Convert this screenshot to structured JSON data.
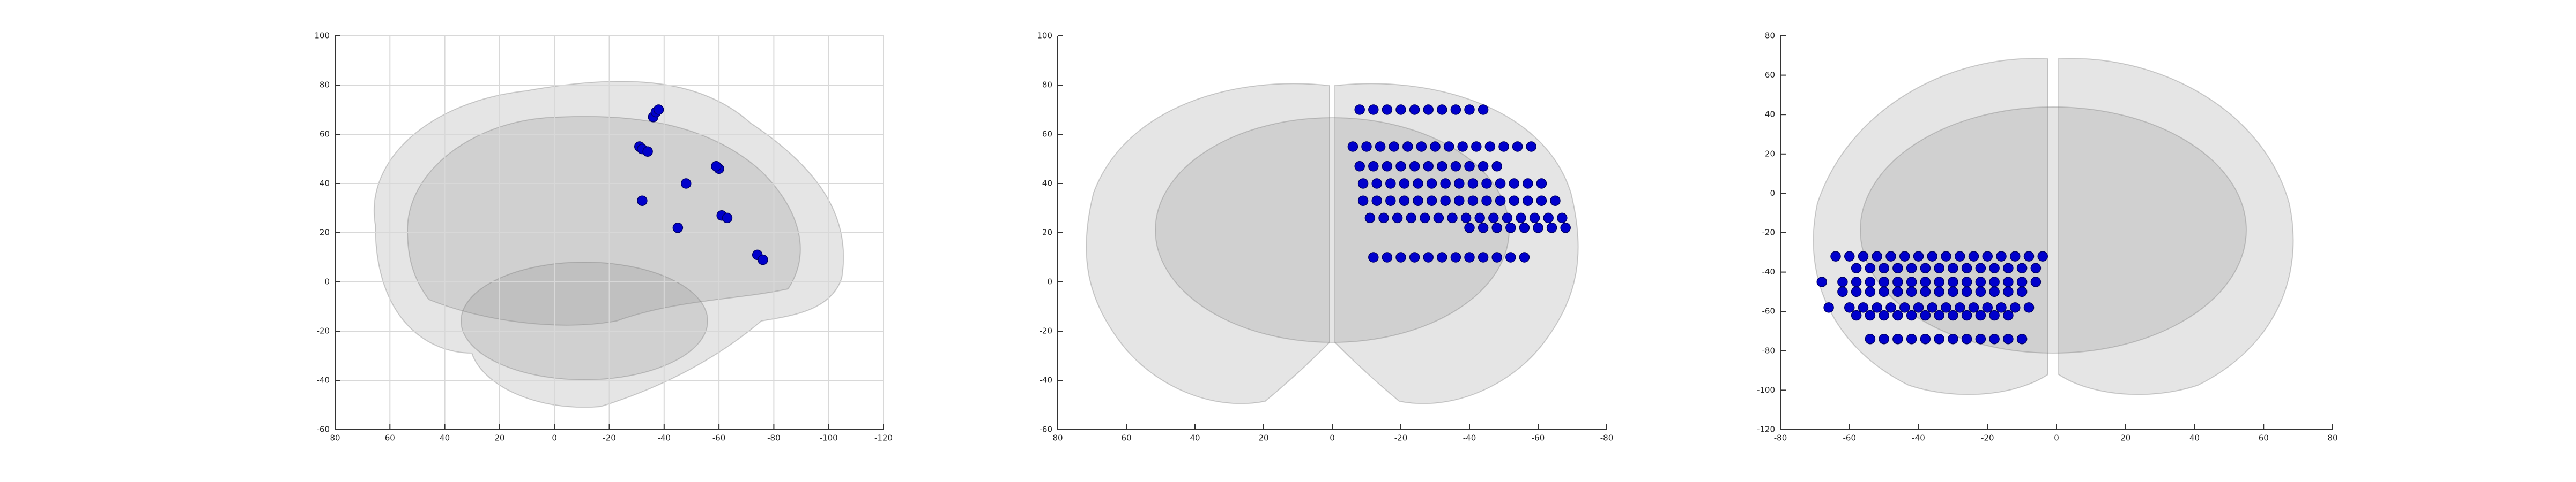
{
  "chart_data": [
    {
      "type": "scatter",
      "color": "#0000cc",
      "grid": true,
      "xlim": [
        80,
        -120
      ],
      "xticks": [
        80,
        60,
        40,
        20,
        0,
        -20,
        -40,
        -60,
        -80,
        -100,
        -120
      ],
      "ylim": [
        -60,
        100
      ],
      "yticks": [
        -60,
        -40,
        -20,
        0,
        20,
        40,
        60,
        80,
        100
      ],
      "x": [
        -36,
        -37,
        -38,
        -31,
        -32,
        -34,
        -60,
        -59,
        -48,
        -32,
        -61,
        -63,
        -45,
        -74,
        -76
      ],
      "y": [
        67,
        69,
        70,
        55,
        54,
        53,
        46,
        47,
        40,
        33,
        27,
        26,
        22,
        11,
        9
      ]
    },
    {
      "type": "scatter",
      "color": "#0000cc",
      "grid": false,
      "xlim": [
        80,
        -80
      ],
      "xticks": [
        80,
        60,
        40,
        20,
        0,
        -20,
        -40,
        -60,
        -80
      ],
      "ylim": [
        -60,
        100
      ],
      "yticks": [
        -60,
        -40,
        -20,
        0,
        20,
        40,
        60,
        80,
        100
      ],
      "x": [
        -8,
        -12,
        -16,
        -20,
        -24,
        -28,
        -32,
        -36,
        -40,
        -44,
        -6,
        -10,
        -14,
        -18,
        -22,
        -26,
        -30,
        -34,
        -38,
        -42,
        -46,
        -50,
        -54,
        -58,
        -8,
        -12,
        -16,
        -20,
        -24,
        -28,
        -32,
        -36,
        -40,
        -44,
        -48,
        -9,
        -13,
        -17,
        -21,
        -25,
        -29,
        -33,
        -37,
        -41,
        -45,
        -49,
        -53,
        -57,
        -61,
        -9,
        -13,
        -17,
        -21,
        -25,
        -29,
        -33,
        -37,
        -41,
        -45,
        -49,
        -53,
        -57,
        -61,
        -65,
        -11,
        -15,
        -19,
        -23,
        -27,
        -31,
        -35,
        -39,
        -43,
        -47,
        -51,
        -55,
        -59,
        -63,
        -67,
        -40,
        -44,
        -48,
        -52,
        -56,
        -60,
        -64,
        -68,
        -12,
        -16,
        -20,
        -24,
        -28,
        -32,
        -36,
        -40,
        -44,
        -48,
        -52,
        -56
      ],
      "y": [
        70,
        70,
        70,
        70,
        70,
        70,
        70,
        70,
        70,
        70,
        55,
        55,
        55,
        55,
        55,
        55,
        55,
        55,
        55,
        55,
        55,
        55,
        55,
        55,
        47,
        47,
        47,
        47,
        47,
        47,
        47,
        47,
        47,
        47,
        47,
        40,
        40,
        40,
        40,
        40,
        40,
        40,
        40,
        40,
        40,
        40,
        40,
        40,
        40,
        33,
        33,
        33,
        33,
        33,
        33,
        33,
        33,
        33,
        33,
        33,
        33,
        33,
        33,
        33,
        26,
        26,
        26,
        26,
        26,
        26,
        26,
        26,
        26,
        26,
        26,
        26,
        26,
        26,
        26,
        22,
        22,
        22,
        22,
        22,
        22,
        22,
        22,
        10,
        10,
        10,
        10,
        10,
        10,
        10,
        10,
        10,
        10,
        10,
        10
      ]
    },
    {
      "type": "scatter",
      "color": "#0000cc",
      "grid": false,
      "xlim": [
        -80,
        80
      ],
      "xticks": [
        -80,
        -60,
        -40,
        -20,
        0,
        20,
        40,
        60,
        80
      ],
      "ylim": [
        -120,
        80
      ],
      "yticks": [
        -120,
        -100,
        -80,
        -60,
        -40,
        -20,
        0,
        20,
        40,
        60,
        80
      ],
      "x": [
        -64,
        -60,
        -56,
        -52,
        -48,
        -44,
        -40,
        -36,
        -32,
        -28,
        -24,
        -20,
        -16,
        -12,
        -8,
        -4,
        -58,
        -54,
        -50,
        -46,
        -42,
        -38,
        -34,
        -30,
        -26,
        -22,
        -18,
        -14,
        -10,
        -6,
        -68,
        -62,
        -58,
        -54,
        -50,
        -46,
        -42,
        -38,
        -34,
        -30,
        -26,
        -22,
        -18,
        -14,
        -10,
        -6,
        -62,
        -58,
        -54,
        -50,
        -46,
        -42,
        -38,
        -34,
        -30,
        -26,
        -22,
        -18,
        -14,
        -10,
        -66,
        -60,
        -56,
        -52,
        -48,
        -44,
        -40,
        -36,
        -32,
        -28,
        -24,
        -20,
        -16,
        -12,
        -8,
        -58,
        -54,
        -50,
        -46,
        -42,
        -38,
        -34,
        -30,
        -26,
        -22,
        -18,
        -14,
        -54,
        -50,
        -46,
        -42,
        -38,
        -34,
        -30,
        -26,
        -22,
        -18,
        -14,
        -10
      ],
      "y": [
        -32,
        -32,
        -32,
        -32,
        -32,
        -32,
        -32,
        -32,
        -32,
        -32,
        -32,
        -32,
        -32,
        -32,
        -32,
        -32,
        -38,
        -38,
        -38,
        -38,
        -38,
        -38,
        -38,
        -38,
        -38,
        -38,
        -38,
        -38,
        -38,
        -38,
        -45,
        -45,
        -45,
        -45,
        -45,
        -45,
        -45,
        -45,
        -45,
        -45,
        -45,
        -45,
        -45,
        -45,
        -45,
        -45,
        -50,
        -50,
        -50,
        -50,
        -50,
        -50,
        -50,
        -50,
        -50,
        -50,
        -50,
        -50,
        -50,
        -50,
        -58,
        -58,
        -58,
        -58,
        -58,
        -58,
        -58,
        -58,
        -58,
        -58,
        -58,
        -58,
        -58,
        -58,
        -58,
        -62,
        -62,
        -62,
        -62,
        -62,
        -62,
        -62,
        -62,
        -62,
        -62,
        -62,
        -62,
        -74,
        -74,
        -74,
        -74,
        -74,
        -74,
        -74,
        -74,
        -74,
        -74,
        -74,
        -74
      ]
    }
  ]
}
